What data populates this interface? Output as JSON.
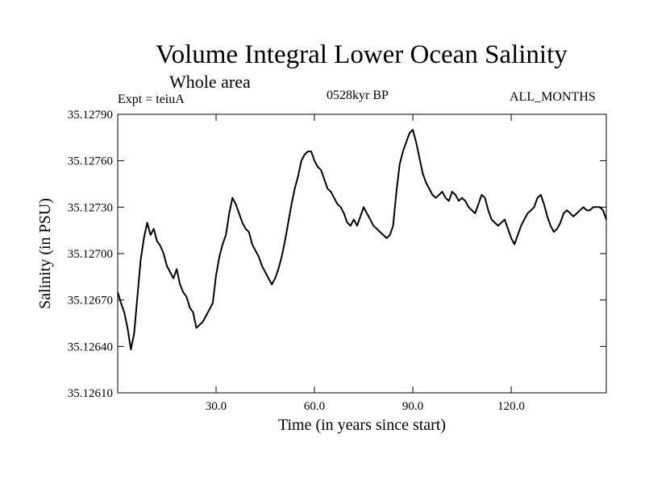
{
  "header": {
    "title": "Volume Integral Lower Ocean Salinity",
    "subtitle": "Whole area",
    "experiment": "Expt = teiuA",
    "period": "0528kyr BP",
    "months": "ALL_MONTHS"
  },
  "chart_data": {
    "type": "line",
    "title": "Volume Integral Lower Ocean Salinity",
    "xlabel": "Time (in years since start)",
    "ylabel": "Salinity (in PSU)",
    "xlim": [
      0,
      149
    ],
    "ylim": [
      35.1261,
      35.1279
    ],
    "xticks": [
      30,
      60,
      90,
      120
    ],
    "xtick_labels": [
      "30.0",
      "60.0",
      "90.0",
      "120.0"
    ],
    "yticks": [
      35.1261,
      35.1264,
      35.1267,
      35.127,
      35.1273,
      35.1276,
      35.1279
    ],
    "ytick_labels": [
      "35.12610",
      "35.12640",
      "35.12670",
      "35.12700",
      "35.12730",
      "35.12760",
      "35.12790"
    ],
    "series": [
      {
        "name": "Salinity",
        "x": [
          0,
          1,
          2,
          3,
          4,
          5,
          6,
          7,
          8,
          9,
          10,
          11,
          12,
          13,
          14,
          15,
          16,
          17,
          18,
          19,
          20,
          21,
          22,
          23,
          24,
          25,
          26,
          27,
          28,
          29,
          30,
          31,
          32,
          33,
          34,
          35,
          36,
          37,
          38,
          39,
          40,
          41,
          42,
          43,
          44,
          45,
          46,
          47,
          48,
          49,
          50,
          51,
          52,
          53,
          54,
          55,
          56,
          57,
          58,
          59,
          60,
          61,
          62,
          63,
          64,
          65,
          66,
          67,
          68,
          69,
          70,
          71,
          72,
          73,
          74,
          75,
          76,
          77,
          78,
          79,
          80,
          81,
          82,
          83,
          84,
          85,
          86,
          87,
          88,
          89,
          90,
          91,
          92,
          93,
          94,
          95,
          96,
          97,
          98,
          99,
          100,
          101,
          102,
          103,
          104,
          105,
          106,
          107,
          108,
          109,
          110,
          111,
          112,
          113,
          114,
          115,
          116,
          117,
          118,
          119,
          120,
          121,
          122,
          123,
          124,
          125,
          126,
          127,
          128,
          129,
          130,
          131,
          132,
          133,
          134,
          135,
          136,
          137,
          138,
          139,
          140,
          141,
          142,
          143,
          144,
          145,
          146,
          147,
          148,
          149
        ],
        "values": [
          35.12675,
          35.12668,
          35.12662,
          35.12652,
          35.12638,
          35.12648,
          35.12672,
          35.12696,
          35.1271,
          35.1272,
          35.12712,
          35.12716,
          35.12708,
          35.12705,
          35.127,
          35.12692,
          35.12688,
          35.12684,
          35.1269,
          35.1268,
          35.12675,
          35.12672,
          35.12665,
          35.12662,
          35.12652,
          35.12654,
          35.12656,
          35.1266,
          35.12664,
          35.12668,
          35.12686,
          35.12698,
          35.12706,
          35.12712,
          35.12726,
          35.12736,
          35.12732,
          35.12726,
          35.1272,
          35.12716,
          35.12714,
          35.12706,
          35.12702,
          35.12698,
          35.12692,
          35.12688,
          35.12684,
          35.1268,
          35.12684,
          35.1269,
          35.12698,
          35.12708,
          35.1272,
          35.12732,
          35.12742,
          35.1275,
          35.1276,
          35.12764,
          35.12766,
          35.12766,
          35.1276,
          35.12756,
          35.12754,
          35.12748,
          35.12742,
          35.1274,
          35.12736,
          35.12732,
          35.1273,
          35.12726,
          35.1272,
          35.12718,
          35.12722,
          35.12718,
          35.12724,
          35.1273,
          35.12726,
          35.12722,
          35.12718,
          35.12716,
          35.12714,
          35.12712,
          35.1271,
          35.12712,
          35.12718,
          35.1274,
          35.12758,
          35.12766,
          35.12772,
          35.12778,
          35.1278,
          35.12772,
          35.12762,
          35.12752,
          35.12746,
          35.12742,
          35.12738,
          35.12736,
          35.12738,
          35.1274,
          35.12736,
          35.12734,
          35.1274,
          35.12738,
          35.12734,
          35.12736,
          35.12734,
          35.1273,
          35.12728,
          35.12726,
          35.12732,
          35.12738,
          35.12736,
          35.12728,
          35.12722,
          35.1272,
          35.12718,
          35.1272,
          35.12722,
          35.12716,
          35.1271,
          35.12706,
          35.12712,
          35.12718,
          35.12722,
          35.12726,
          35.12728,
          35.1273,
          35.12736,
          35.12738,
          35.12732,
          35.12724,
          35.12718,
          35.12714,
          35.12716,
          35.1272,
          35.12726,
          35.12728,
          35.12726,
          35.12724,
          35.12726,
          35.12728,
          35.1273,
          35.12728,
          35.12728,
          35.1273,
          35.1273,
          35.1273,
          35.12728,
          35.12722
        ]
      }
    ]
  }
}
